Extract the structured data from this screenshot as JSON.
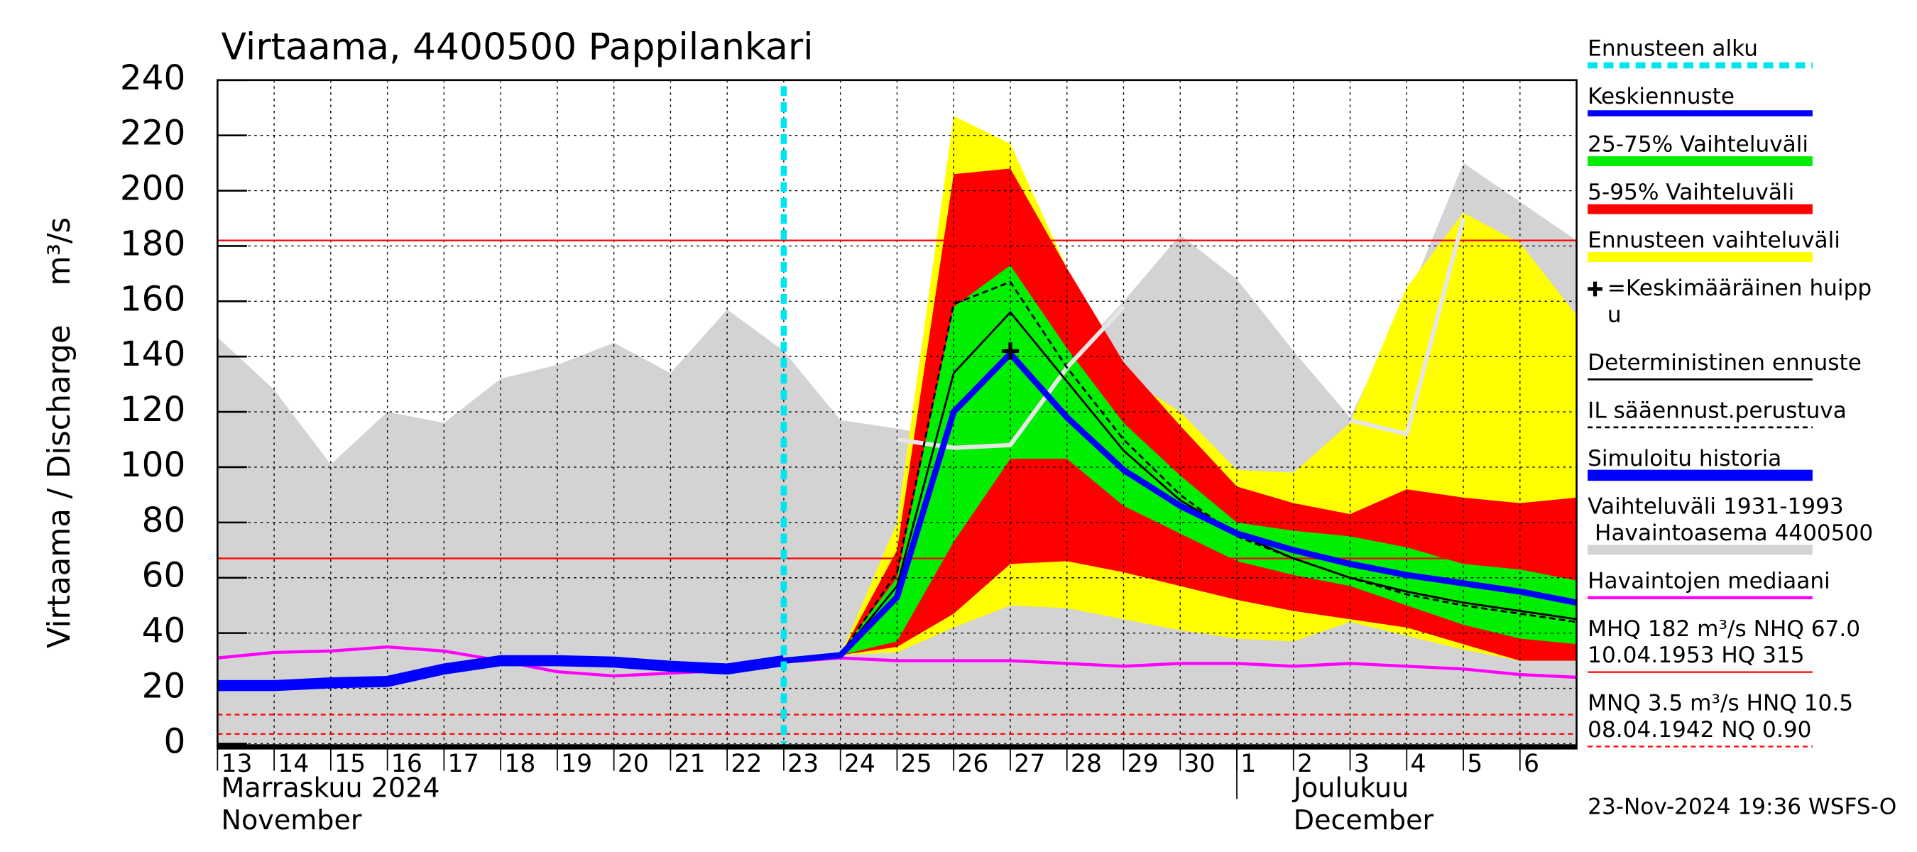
{
  "chart_data": {
    "type": "line",
    "title": "Virtaama, 4400500 Pappilankari",
    "y_label": "Virtaama / Discharge    m³/s",
    "xlim": [
      0,
      24
    ],
    "xticks": [
      {
        "value": 0,
        "label": "13"
      },
      {
        "value": 1,
        "label": "14"
      },
      {
        "value": 2,
        "label": "15"
      },
      {
        "value": 3,
        "label": "16"
      },
      {
        "value": 4,
        "label": "17"
      },
      {
        "value": 5,
        "label": "18"
      },
      {
        "value": 6,
        "label": "19"
      },
      {
        "value": 7,
        "label": "20"
      },
      {
        "value": 8,
        "label": "21"
      },
      {
        "value": 9,
        "label": "22"
      },
      {
        "value": 10,
        "label": "23"
      },
      {
        "value": 11,
        "label": "24"
      },
      {
        "value": 12,
        "label": "25"
      },
      {
        "value": 13,
        "label": "26"
      },
      {
        "value": 14,
        "label": "27"
      },
      {
        "value": 15,
        "label": "28"
      },
      {
        "value": 16,
        "label": "29"
      },
      {
        "value": 17,
        "label": "30"
      },
      {
        "value": 18,
        "label": "1"
      },
      {
        "value": 19,
        "label": "2"
      },
      {
        "value": 20,
        "label": "3"
      },
      {
        "value": 21,
        "label": "4"
      },
      {
        "value": 22,
        "label": "5"
      },
      {
        "value": 23,
        "label": "6"
      }
    ],
    "ylim": [
      0,
      240
    ],
    "yticks": [
      0,
      20,
      40,
      60,
      80,
      100,
      120,
      140,
      160,
      180,
      200,
      220,
      240
    ],
    "grid": true,
    "months": [
      {
        "label": "Marraskuu 2024\nNovember",
        "start": 0
      },
      {
        "label": "Joulukuu\nDecember",
        "start": 18
      }
    ],
    "forecast_start": {
      "name": "Ennusteen alku",
      "x": 10,
      "color": "#00e5ee"
    },
    "peak": {
      "name": "=Keskimääräinen huipp\nu",
      "x": 14,
      "y": 142,
      "color": "#000000"
    },
    "series": [
      {
        "name": "Keskiennuste",
        "kind": "line",
        "color": "#0000ff",
        "width": 5,
        "x": [
          10,
          11,
          12,
          13,
          14,
          15,
          16,
          17,
          18,
          19,
          20,
          21,
          22,
          23,
          24
        ],
        "values": [
          30,
          32,
          53,
          120,
          141,
          118,
          99,
          86,
          76,
          70,
          65,
          61,
          58,
          55,
          51
        ]
      },
      {
        "name": "25-75% Vaihteluväli",
        "kind": "band",
        "color": "#00ee00",
        "x": [
          10,
          11,
          12,
          13,
          14,
          15,
          16,
          17,
          18,
          19,
          20,
          21,
          22,
          23,
          24
        ],
        "lower": [
          30,
          32,
          37,
          73,
          103,
          103,
          86,
          76,
          66,
          61,
          57,
          50,
          43,
          38,
          36
        ],
        "upper": [
          30,
          33,
          60,
          158,
          173,
          143,
          116,
          97,
          80,
          77,
          75,
          71,
          65,
          63,
          59
        ]
      },
      {
        "name": "5-95% Vaihteluväli",
        "kind": "band",
        "color": "#ff0000",
        "x": [
          10,
          11,
          12,
          13,
          14,
          15,
          16,
          17,
          18,
          19,
          20,
          21,
          22,
          23,
          24
        ],
        "lower": [
          30,
          32,
          35,
          47,
          65,
          66,
          62,
          57,
          52,
          48,
          45,
          42,
          36,
          30,
          30
        ],
        "upper": [
          30,
          32,
          70,
          206,
          208,
          172,
          138,
          115,
          93,
          87,
          83,
          92,
          89,
          87,
          89
        ]
      },
      {
        "name": "Ennusteen vaihteluväli",
        "kind": "band",
        "color": "#ffff00",
        "x": [
          10,
          11,
          12,
          13,
          14,
          15,
          16,
          17,
          18,
          19,
          20,
          21,
          22,
          23,
          24
        ],
        "lower": [
          30,
          32,
          33,
          42,
          50,
          49,
          45,
          41,
          38,
          37,
          44,
          39,
          34,
          30,
          30
        ],
        "upper": [
          30,
          32,
          80,
          227,
          217,
          172,
          133,
          120,
          99,
          98,
          116,
          165,
          192,
          181,
          155
        ]
      },
      {
        "name": "Deterministinen ennuste",
        "kind": "line",
        "color": "#000000",
        "width": 1.6,
        "x": [
          10,
          11,
          12,
          13,
          14,
          15,
          16,
          17,
          18,
          19,
          20,
          21,
          22,
          23,
          24
        ],
        "values": [
          30,
          32,
          57,
          134,
          156,
          131,
          106,
          88,
          76,
          67,
          60,
          55,
          51,
          48,
          45
        ]
      },
      {
        "name": "IL sääennust.perustuva",
        "kind": "line",
        "color": "#000000",
        "width": 1.6,
        "dash": true,
        "x": [
          10,
          11,
          12,
          13,
          14,
          15,
          16,
          17,
          18,
          19,
          20,
          21,
          22,
          23,
          24
        ],
        "values": [
          30,
          32,
          62,
          159,
          167,
          136,
          110,
          90,
          75,
          67,
          60,
          54,
          50,
          47,
          44
        ]
      },
      {
        "name": "Simuloitu historia",
        "kind": "line",
        "color": "#0000ff",
        "width": 9,
        "x": [
          0,
          1,
          2,
          3,
          4,
          5,
          6,
          7,
          8,
          9,
          10
        ],
        "values": [
          21,
          21,
          22,
          22.5,
          27,
          30,
          30,
          29.5,
          28,
          27,
          30
        ]
      },
      {
        "name": "Vaihteluväli 1931-1993\n Havaintoasema 4400500",
        "kind": "area",
        "color": "#d3d3d3",
        "x": [
          0,
          1,
          2,
          3,
          4,
          5,
          6,
          7,
          8,
          9,
          10,
          11,
          12,
          13,
          14,
          15,
          16,
          17,
          18,
          19,
          20,
          21,
          22,
          23,
          24
        ],
        "values": [
          147,
          128,
          101,
          120,
          116,
          132,
          137,
          145,
          134,
          157,
          142,
          117,
          114,
          110,
          118,
          138,
          160,
          184,
          168,
          142,
          118,
          160,
          210,
          196,
          182
        ]
      },
      {
        "name": "Havaintojen mediaani",
        "kind": "line",
        "color": "#ff00ff",
        "width": 2.5,
        "x": [
          0,
          1,
          2,
          3,
          4,
          5,
          6,
          7,
          8,
          9,
          10,
          11,
          12,
          13,
          14,
          15,
          16,
          17,
          18,
          19,
          20,
          21,
          22,
          23,
          24
        ],
        "values": [
          31,
          33,
          33.5,
          35,
          33.5,
          30,
          26,
          24.5,
          25.5,
          26.5,
          29.5,
          31,
          30,
          30,
          30,
          29,
          28,
          29,
          29,
          28,
          29,
          28,
          27,
          25,
          24
        ]
      },
      {
        "kind": "line",
        "color": "#e6e6e6",
        "width": 3.5,
        "x": [
          12,
          13,
          14,
          15,
          16,
          17,
          18,
          19,
          20,
          21,
          22
        ],
        "values": [
          110,
          107,
          108,
          136,
          158,
          null,
          null,
          null,
          117,
          112,
          190
        ]
      }
    ],
    "reference_lines": [
      {
        "label": "MHQ  182 m³/s NHQ 67.0\n10.04.1953 HQ  315",
        "values": [
          182,
          67
        ],
        "color": "#ff0000",
        "dash": false
      },
      {
        "label": "MNQ  3.5 m³/s HNQ 10.5\n08.04.1942 NQ 0.90",
        "values": [
          10.5,
          3.5
        ],
        "color": "#ff0000",
        "dash": true
      }
    ],
    "footer": "23-Nov-2024 19:36 WSFS-O"
  }
}
